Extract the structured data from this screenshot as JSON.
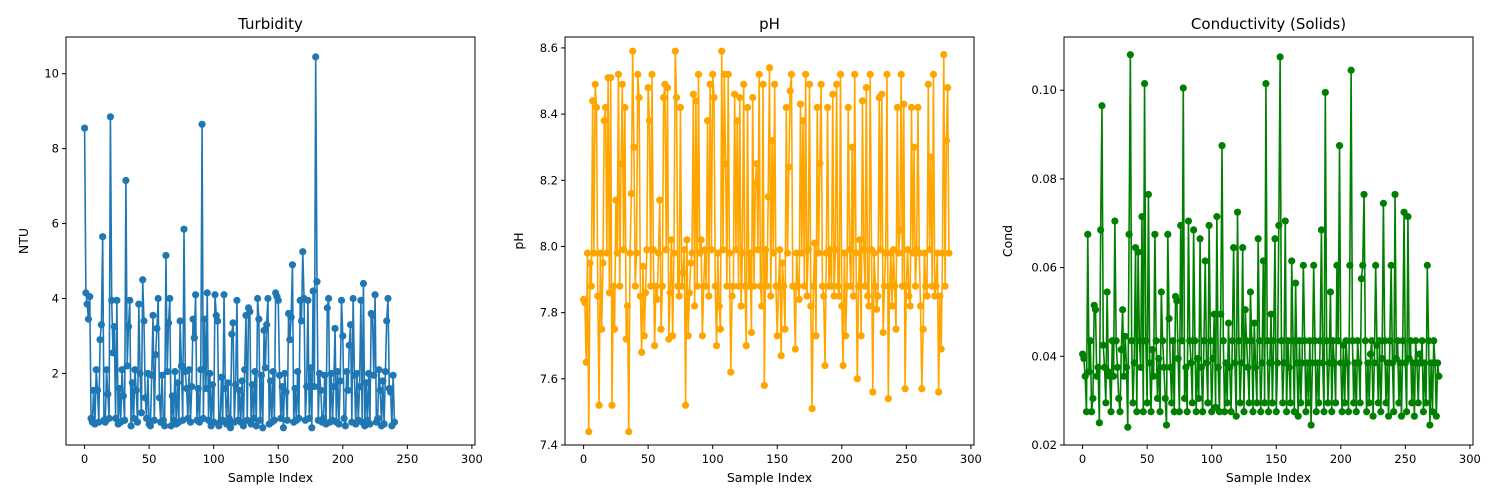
{
  "chart_data": [
    {
      "type": "line",
      "title": "Turbidity",
      "xlabel": "Sample Index",
      "ylabel": "NTU",
      "color": "#1f77b4",
      "xlim": [
        -14.4,
        302.4
      ],
      "ylim": [
        0.09,
        10.98
      ],
      "xticks": [
        0,
        50,
        100,
        150,
        200,
        250,
        300
      ],
      "yticks": [
        2,
        4,
        6,
        8,
        10
      ],
      "ytick_labels": [
        "2",
        "4",
        "6",
        "8",
        "10"
      ],
      "series": [
        {
          "values": [
            8.55,
            4.15,
            3.85,
            3.45,
            4.05,
            0.8,
            0.7,
            1.55,
            0.65,
            2.1,
            1.55,
            0.7,
            2.9,
            3.3,
            5.65,
            0.75,
            0.7,
            2.1,
            1.45,
            0.8,
            8.85,
            3.95,
            2.55,
            3.25,
            0.8,
            3.95,
            0.65,
            1.6,
            0.7,
            2.1,
            1.4,
            0.75,
            7.15,
            2.2,
            3.25,
            3.95,
            0.6,
            1.75,
            0.8,
            2.1,
            1.55,
            0.7,
            3.85,
            2.0,
            0.95,
            4.5,
            3.4,
            1.35,
            0.8,
            2.0,
            0.65,
            0.6,
            1.95,
            3.55,
            0.75,
            2.5,
            3.2,
            4.0,
            1.35,
            0.7,
            1.95,
            0.75,
            0.6,
            5.15,
            2.05,
            3.35,
            4.0,
            0.6,
            1.4,
            0.75,
            2.05,
            0.65,
            1.75,
            0.7,
            3.4,
            2.2,
            0.75,
            5.85,
            2.05,
            1.6,
            0.8,
            2.1,
            0.7,
            1.65,
            3.45,
            2.95,
            4.1,
            0.75,
            1.6,
            0.7,
            2.1,
            8.65,
            0.8,
            3.45,
            1.6,
            4.15,
            0.75,
            2.0,
            0.6,
            1.7,
            0.7,
            4.1,
            3.55,
            3.4,
            0.6,
            0.7,
            1.9,
            0.75,
            4.1,
            1.6,
            0.65,
            1.75,
            0.8,
            0.55,
            3.05,
            3.35,
            0.7,
            1.7,
            3.95,
            0.75,
            1.55,
            0.7,
            1.8,
            0.6,
            2.1,
            3.55,
            0.75,
            3.75,
            3.65,
            0.65,
            1.7,
            0.8,
            2.05,
            0.6,
            4.0,
            3.45,
            0.75,
            1.95,
            0.55,
            3.15,
            2.15,
            3.3,
            4.0,
            0.65,
            1.8,
            0.7,
            2.05,
            0.75,
            4.15,
            4.05,
            3.95,
            1.95,
            0.8,
            1.65,
            0.55,
            2.0,
            1.5,
            0.75,
            3.6,
            2.9,
            3.5,
            4.9,
            0.7,
            1.6,
            0.75,
            2.05,
            0.8,
            3.95,
            3.4,
            5.25,
            4.0,
            0.75,
            1.65,
            3.95,
            0.8,
            2.15,
            0.55,
            4.2,
            1.65,
            10.45,
            4.45,
            0.75,
            2.0,
            1.55,
            0.7,
            0.8,
            1.95,
            0.65,
            3.75,
            4.0,
            0.7,
            2.0,
            0.75,
            1.65,
            3.2,
            0.7,
            2.05,
            0.65,
            1.8,
            3.95,
            3.0,
            0.8,
            0.6,
            2.05,
            1.55,
            2.75,
            3.3,
            0.7,
            4.0,
            1.95,
            0.65,
            2.0,
            0.75,
            1.65,
            3.95,
            0.7,
            4.4,
            0.6,
            1.75,
            0.75,
            2.0,
            0.65,
            3.6,
            3.55,
            1.95,
            4.1,
            0.7,
            0.8,
            2.1,
            1.55,
            0.6,
            1.8,
            0.65,
            2.05,
            3.4,
            4.0,
            1.6,
            1.5,
            0.6,
            1.95,
            0.7
          ]
        }
      ]
    },
    {
      "type": "line",
      "title": "pH",
      "xlabel": "Sample Index",
      "ylabel": "pH",
      "color": "#ffa500",
      "xlim": [
        -14.4,
        302.4
      ],
      "ylim": [
        7.4,
        8.633
      ],
      "xticks": [
        0,
        50,
        100,
        150,
        200,
        250,
        300
      ],
      "yticks": [
        7.4,
        7.6,
        7.8,
        8.0,
        8.2,
        8.4,
        8.6
      ],
      "ytick_labels": [
        "7.4",
        "7.6",
        "7.8",
        "8.0",
        "8.2",
        "8.4",
        "8.6"
      ],
      "series": [
        {
          "values": [
            7.84,
            7.83,
            7.65,
            7.98,
            7.44,
            7.95,
            7.88,
            8.44,
            7.98,
            8.49,
            8.42,
            7.85,
            7.52,
            7.98,
            7.75,
            7.95,
            8.38,
            8.42,
            7.98,
            8.51,
            7.86,
            8.51,
            7.52,
            7.88,
            7.75,
            8.14,
            7.98,
            8.52,
            7.88,
            8.25,
            8.49,
            7.99,
            8.42,
            7.72,
            7.82,
            7.44,
            7.98,
            8.16,
            8.59,
            8.3,
            7.88,
            7.98,
            8.52,
            8.45,
            7.85,
            7.68,
            7.94,
            7.73,
            7.86,
            7.99,
            8.48,
            8.38,
            7.88,
            8.52,
            7.99,
            7.7,
            7.88,
            7.84,
            7.98,
            8.14,
            7.75,
            7.88,
            8.45,
            8.49,
            7.99,
            8.48,
            7.72,
            7.86,
            8.02,
            7.73,
            7.98,
            8.59,
            8.45,
            7.88,
            7.85,
            8.42,
            7.88,
            7.92,
            7.99,
            7.52,
            8.02,
            7.73,
            7.86,
            7.95,
            7.98,
            8.46,
            7.82,
            8.44,
            7.88,
            8.52,
            7.98,
            8.02,
            7.73,
            7.88,
            7.99,
            7.88,
            8.38,
            7.85,
            8.49,
            7.99,
            8.52,
            8.45,
            7.88,
            7.7,
            7.98,
            7.82,
            7.75,
            8.59,
            7.99,
            8.52,
            8.25,
            7.88,
            8.52,
            7.98,
            7.62,
            7.85,
            7.88,
            8.46,
            7.99,
            8.38,
            7.88,
            8.45,
            7.82,
            7.98,
            8.49,
            7.88,
            7.7,
            8.42,
            7.88,
            7.98,
            7.74,
            8.45,
            7.88,
            8.19,
            8.25,
            7.99,
            8.52,
            7.88,
            7.82,
            8.49,
            7.58,
            7.99,
            7.88,
            8.15,
            8.54,
            7.85,
            8.32,
            7.98,
            8.49,
            7.88,
            7.73,
            7.88,
            7.99,
            7.67,
            7.95,
            7.88,
            7.75,
            8.42,
            7.98,
            8.24,
            8.47,
            8.52,
            7.88,
            7.88,
            7.69,
            7.98,
            7.88,
            7.84,
            8.43,
            7.98,
            8.38,
            7.88,
            8.52,
            7.85,
            7.99,
            8.49,
            7.82,
            7.51,
            7.88,
            8.01,
            7.73,
            8.42,
            7.98,
            8.25,
            8.49,
            7.88,
            7.85,
            7.64,
            7.98,
            8.42,
            7.88,
            7.99,
            7.88,
            8.46,
            7.85,
            7.99,
            8.49,
            7.88,
            7.85,
            8.52,
            7.82,
            7.64,
            7.98,
            7.73,
            7.88,
            8.42,
            7.99,
            7.88,
            8.3,
            7.85,
            8.52,
            7.98,
            7.6,
            7.88,
            8.02,
            7.73,
            8.44,
            7.99,
            7.88,
            8.48,
            7.85,
            7.82,
            8.52,
            7.99,
            7.56,
            7.98,
            7.88,
            7.81,
            7.85,
            8.45,
            7.99,
            8.46,
            7.74,
            7.88,
            7.98,
            8.52,
            7.54,
            7.88,
            7.98,
            7.82,
            7.99,
            7.88,
            7.75,
            8.42,
            7.98,
            8.05,
            8.52,
            7.88,
            8.43,
            7.57,
            7.88,
            7.99,
            7.85,
            7.82,
            8.42,
            7.98,
            8.3,
            7.88,
            7.99,
            8.42,
            7.98,
            7.82,
            7.57,
            7.75,
            7.98,
            7.88,
            7.85,
            8.49,
            7.99,
            8.27,
            7.88,
            8.52,
            7.85,
            7.88,
            7.98,
            7.56,
            7.85,
            7.69,
            7.98,
            8.58,
            7.88,
            8.32,
            8.48,
            7.98
          ]
        }
      ]
    },
    {
      "type": "line",
      "title": "Conductivity (Solids)",
      "xlabel": "Sample Index",
      "ylabel": "Cond",
      "color": "#008000",
      "xlim": [
        -14.4,
        302.4
      ],
      "ylim": [
        0.02,
        0.112
      ],
      "xticks": [
        0,
        50,
        100,
        150,
        200,
        250,
        300
      ],
      "yticks": [
        0.02,
        0.04,
        0.06,
        0.08,
        0.1
      ],
      "ytick_labels": [
        "0.02",
        "0.04",
        "0.06",
        "0.08",
        "0.10"
      ],
      "series": [
        {
          "values": [
            0.0405,
            0.0395,
            0.0355,
            0.0275,
            0.0675,
            0.0365,
            0.0435,
            0.0275,
            0.0305,
            0.0515,
            0.0505,
            0.0355,
            0.0375,
            0.025,
            0.0685,
            0.0965,
            0.0425,
            0.0375,
            0.0295,
            0.0545,
            0.0365,
            0.0355,
            0.0275,
            0.0435,
            0.0355,
            0.0705,
            0.0435,
            0.0375,
            0.0305,
            0.0275,
            0.0415,
            0.0505,
            0.0355,
            0.0445,
            0.0375,
            0.024,
            0.0675,
            0.108,
            0.0435,
            0.0295,
            0.0385,
            0.0645,
            0.0275,
            0.0635,
            0.0435,
            0.0375,
            0.0715,
            0.0275,
            0.1015,
            0.0435,
            0.0295,
            0.0765,
            0.0385,
            0.0275,
            0.0415,
            0.0355,
            0.0675,
            0.0435,
            0.0305,
            0.0395,
            0.0275,
            0.0545,
            0.0435,
            0.0375,
            0.0305,
            0.0245,
            0.0675,
            0.0485,
            0.0375,
            0.0295,
            0.0435,
            0.0275,
            0.0535,
            0.0525,
            0.0395,
            0.0275,
            0.0695,
            0.0435,
            0.1005,
            0.0305,
            0.0375,
            0.0275,
            0.0705,
            0.0435,
            0.0385,
            0.0295,
            0.0685,
            0.0435,
            0.0275,
            0.0395,
            0.0305,
            0.0665,
            0.0375,
            0.0275,
            0.0435,
            0.0615,
            0.0385,
            0.0295,
            0.0695,
            0.0435,
            0.0275,
            0.0395,
            0.0495,
            0.0285,
            0.0715,
            0.0375,
            0.0275,
            0.0495,
            0.0875,
            0.0435,
            0.0275,
            0.0385,
            0.0295,
            0.0475,
            0.0375,
            0.0275,
            0.0435,
            0.0645,
            0.0385,
            0.0265,
            0.0725,
            0.0435,
            0.0295,
            0.0385,
            0.0645,
            0.0275,
            0.0505,
            0.0435,
            0.0375,
            0.0295,
            0.0545,
            0.0435,
            0.0275,
            0.0475,
            0.0375,
            0.0295,
            0.0665,
            0.0435,
            0.0275,
            0.0385,
            0.0615,
            0.0295,
            0.1015,
            0.0435,
            0.0275,
            0.0385,
            0.0495,
            0.0295,
            0.0435,
            0.0665,
            0.0275,
            0.0385,
            0.0695,
            0.1075,
            0.0435,
            0.0295,
            0.0385,
            0.0705,
            0.0275,
            0.0435,
            0.0375,
            0.0295,
            0.0615,
            0.0435,
            0.0275,
            0.0565,
            0.0385,
            0.0265,
            0.0435,
            0.0295,
            0.0385,
            0.0605,
            0.0435,
            0.0275,
            0.0385,
            0.0295,
            0.0435,
            0.0245,
            0.0385,
            0.0605,
            0.0435,
            0.0275,
            0.0385,
            0.0295,
            0.0435,
            0.0685,
            0.0385,
            0.0275,
            0.0995,
            0.0435,
            0.0295,
            0.0385,
            0.0545,
            0.0275,
            0.0435,
            0.0385,
            0.0295,
            0.0605,
            0.0435,
            0.0875,
            0.0385,
            0.0275,
            0.0425,
            0.0295,
            0.0435,
            0.0385,
            0.0275,
            0.0605,
            0.1045,
            0.0435,
            0.0295,
            0.0385,
            0.0275,
            0.0435,
            0.0385,
            0.0295,
            0.0575,
            0.0605,
            0.0765,
            0.0435,
            0.0275,
            0.0385,
            0.0295,
            0.0405,
            0.0435,
            0.0265,
            0.0385,
            0.0605,
            0.0425,
            0.0295,
            0.0435,
            0.0275,
            0.0395,
            0.0745,
            0.0435,
            0.0295,
            0.0385,
            0.0265,
            0.0435,
            0.0605,
            0.0385,
            0.0275,
            0.0765,
            0.0395,
            0.0435,
            0.0295,
            0.0385,
            0.0265,
            0.0435,
            0.0725,
            0.0385,
            0.0275,
            0.0715,
            0.0395,
            0.0435,
            0.0295,
            0.0385,
            0.0265,
            0.0435,
            0.0385,
            0.0295,
            0.0405,
            0.0385,
            0.0435,
            0.0275,
            0.0385,
            0.0295,
            0.0605,
            0.0435,
            0.0245,
            0.0385,
            0.0275,
            0.0435,
            0.0385,
            0.0265,
            0.0385,
            0.0355
          ]
        }
      ]
    }
  ]
}
